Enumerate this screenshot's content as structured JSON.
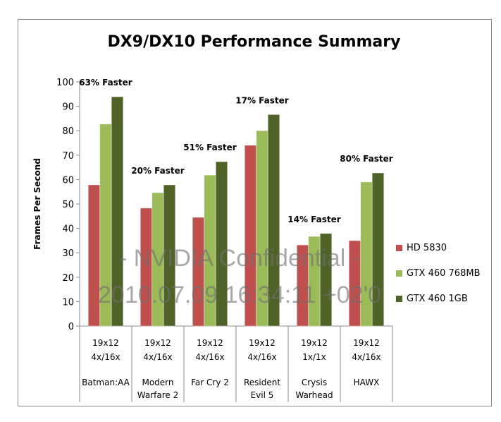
{
  "chart_data": {
    "type": "bar",
    "title": "DX9/DX10 Performance Summary",
    "ylabel": "Frames Per Second",
    "ylim": [
      0,
      100
    ],
    "yticks": [
      0,
      10,
      20,
      30,
      40,
      50,
      60,
      70,
      80,
      90,
      100
    ],
    "grid": false,
    "legend_placement": "right",
    "categories": [
      {
        "lines": [
          "19x12",
          "4x/16x",
          "Batman:AA"
        ]
      },
      {
        "lines": [
          "19x12",
          "4x/16x",
          "Modern",
          "Warfare 2"
        ]
      },
      {
        "lines": [
          "19x12",
          "4x/16x",
          "Far Cry 2"
        ]
      },
      {
        "lines": [
          "19x12",
          "4x/16x",
          "Resident",
          "Evil 5"
        ]
      },
      {
        "lines": [
          "19x12",
          "1x/1x",
          "Crysis",
          "Warhead"
        ]
      },
      {
        "lines": [
          "19x12",
          "4x/16x",
          "HAWX"
        ]
      }
    ],
    "series": [
      {
        "name": "HD 5830",
        "color": "#c0504d",
        "values": [
          57.8,
          48.3,
          44.5,
          74.0,
          33.2,
          35.0
        ]
      },
      {
        "name": "GTX 460 768MB",
        "color": "#9bbb59",
        "values": [
          82.7,
          54.6,
          61.8,
          80.0,
          36.7,
          59.0
        ]
      },
      {
        "name": "GTX 460 1GB",
        "color": "#4f6228",
        "values": [
          93.9,
          57.8,
          67.3,
          86.6,
          37.9,
          62.7
        ]
      }
    ],
    "annotations": [
      "63% Faster",
      "20% Faster",
      "51% Faster",
      "17% Faster",
      "14% Faster",
      "80% Faster"
    ]
  },
  "watermark": "- NVIDIA Confidential - 2010.07.09 16:34:11 +02'0"
}
